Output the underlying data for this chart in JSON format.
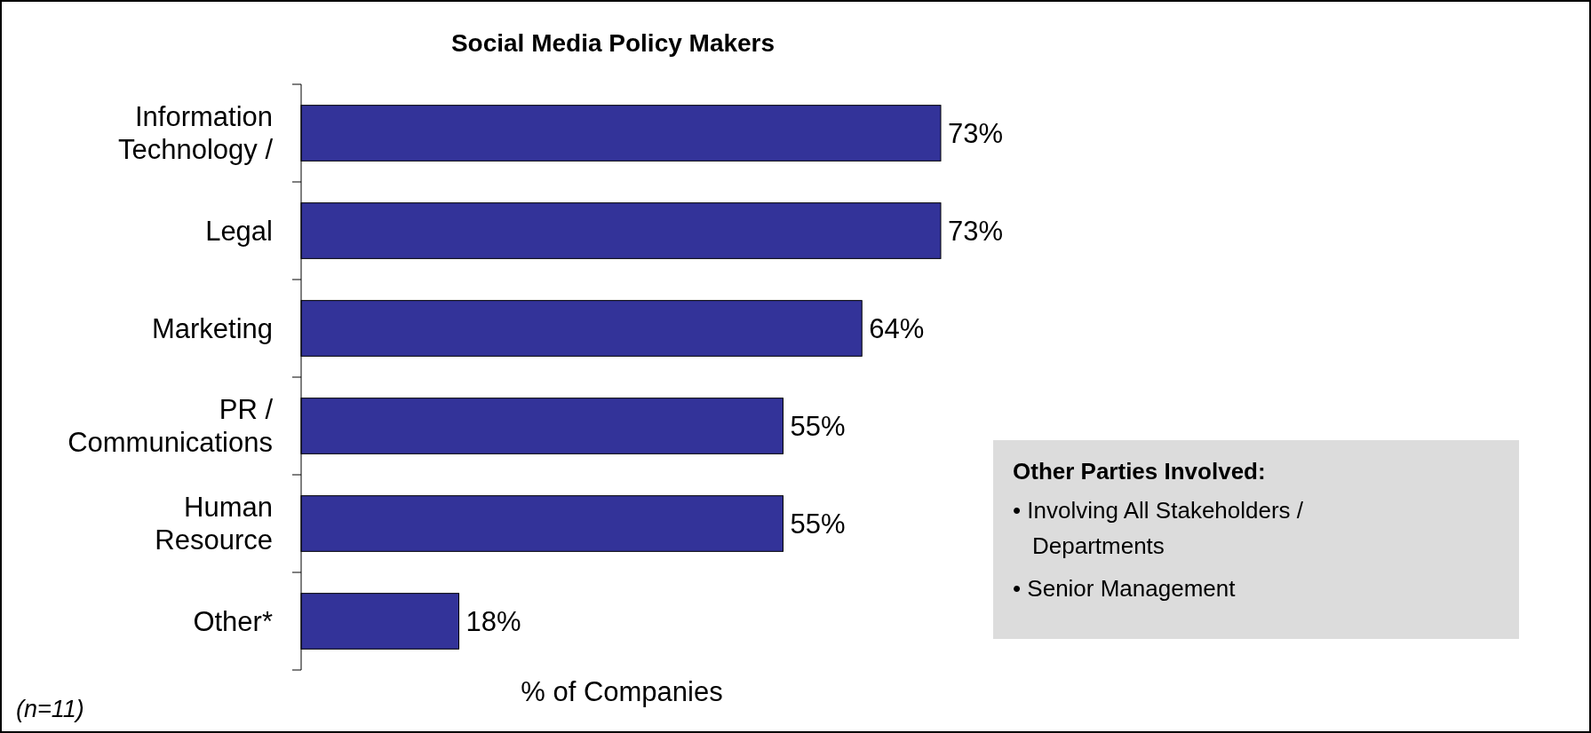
{
  "chart_data": {
    "type": "bar",
    "orientation": "horizontal",
    "title": "Social Media Policy Makers",
    "xlabel": "% of Companies",
    "categories": [
      "Information Technology /",
      "Legal",
      "Marketing",
      "PR / Communications",
      "Human Resource",
      "Other*"
    ],
    "values": [
      73,
      73,
      64,
      55,
      55,
      18
    ],
    "value_labels": [
      "73%",
      "73%",
      "64%",
      "55%",
      "55%",
      "18%"
    ],
    "color": "#333399",
    "annotations": [
      "(n=11)",
      "Other Parties Involved:",
      "• Involving All Stakeholders / Departments",
      "• Senior Management"
    ]
  }
}
